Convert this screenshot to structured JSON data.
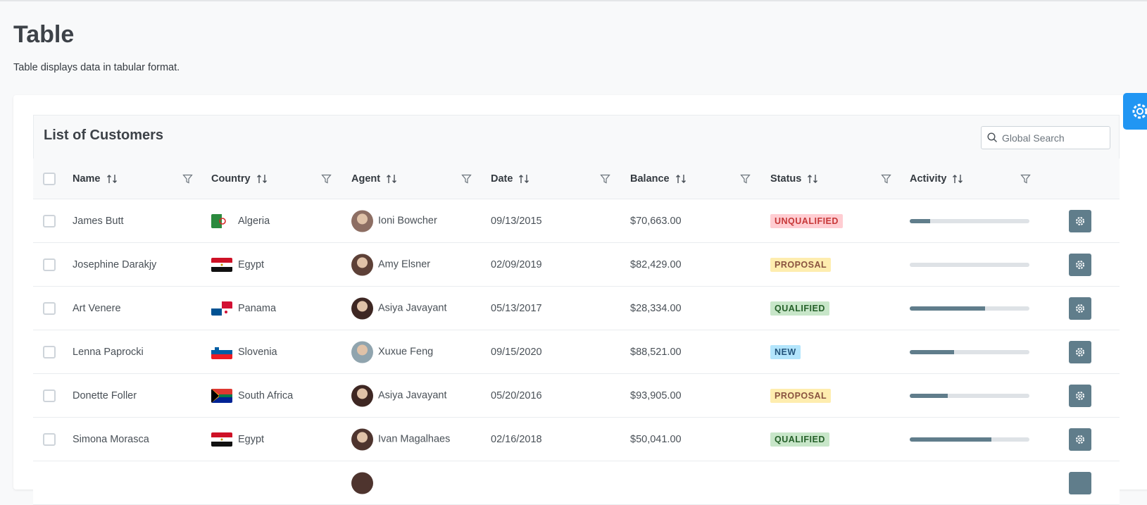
{
  "header": {
    "title": "Table",
    "subtitle": "Table displays data in tabular format."
  },
  "table": {
    "title": "List of Customers",
    "search_placeholder": "Global Search",
    "columns": [
      "Name",
      "Country",
      "Agent",
      "Date",
      "Balance",
      "Status",
      "Activity"
    ],
    "rows": [
      {
        "name": "James Butt",
        "country": "Algeria",
        "agent": "Ioni Bowcher",
        "date": "09/13/2015",
        "balance": "$70,663.00",
        "status": "UNQUALIFIED",
        "activity": 17
      },
      {
        "name": "Josephine Darakjy",
        "country": "Egypt",
        "agent": "Amy Elsner",
        "date": "02/09/2019",
        "balance": "$82,429.00",
        "status": "PROPOSAL",
        "activity": 0
      },
      {
        "name": "Art Venere",
        "country": "Panama",
        "agent": "Asiya Javayant",
        "date": "05/13/2017",
        "balance": "$28,334.00",
        "status": "QUALIFIED",
        "activity": 63
      },
      {
        "name": "Lenna Paprocki",
        "country": "Slovenia",
        "agent": "Xuxue Feng",
        "date": "09/15/2020",
        "balance": "$88,521.00",
        "status": "NEW",
        "activity": 37
      },
      {
        "name": "Donette Foller",
        "country": "South Africa",
        "agent": "Asiya Javayant",
        "date": "05/20/2016",
        "balance": "$93,905.00",
        "status": "PROPOSAL",
        "activity": 32
      },
      {
        "name": "Simona Morasca",
        "country": "Egypt",
        "agent": "Ivan Magalhaes",
        "date": "02/16/2018",
        "balance": "$50,041.00",
        "status": "QUALIFIED",
        "activity": 68
      }
    ]
  }
}
